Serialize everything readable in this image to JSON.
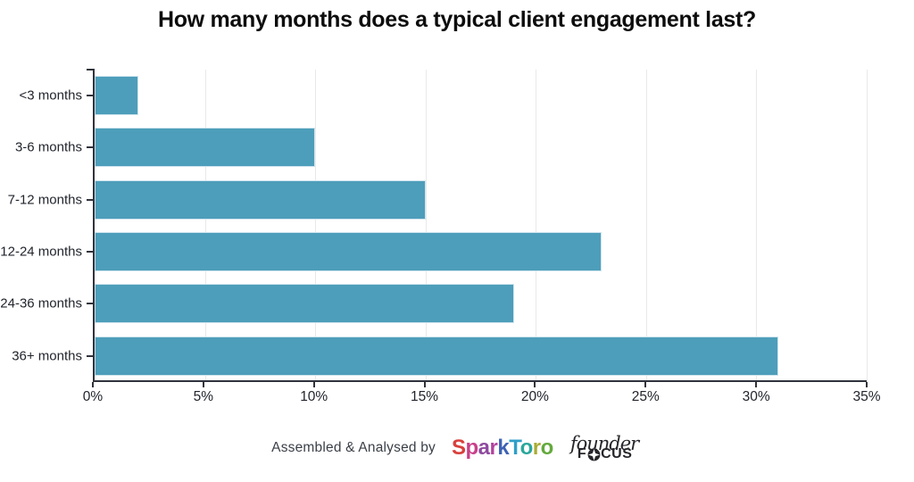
{
  "title": "How many months does a typical client engagement last?",
  "chart_data": {
    "type": "bar",
    "orientation": "horizontal",
    "title": "How many months does a typical client engagement last?",
    "categories": [
      "<3 months",
      "3-6 months",
      "7-12 months",
      "12-24 months",
      "24-36 months",
      "36+ months"
    ],
    "values": [
      2,
      10,
      15,
      23,
      19,
      31
    ],
    "value_unit": "%",
    "xlim": [
      0,
      35
    ],
    "x_tick_step": 5,
    "x_tick_labels": [
      "0%",
      "5%",
      "10%",
      "15%",
      "20%",
      "25%",
      "30%",
      "35%"
    ],
    "grid": true,
    "legend": false,
    "ylabel": "",
    "xlabel": "",
    "colors": {
      "bar": "#4D9EBA",
      "bar_border": "#CFE4EE",
      "grid": "#E9E9E9",
      "axis": "#30333C",
      "label": "#22252D"
    }
  },
  "footer": {
    "credit": "Assembled & Analysed by",
    "sparktoro_letters": [
      {
        "ch": "S",
        "color": "#D8403D"
      },
      {
        "ch": "p",
        "color": "#C93F8A"
      },
      {
        "ch": "a",
        "color": "#8F4A9F"
      },
      {
        "ch": "r",
        "color": "#B1419E"
      },
      {
        "ch": "k",
        "color": "#3E63B4"
      },
      {
        "ch": "T",
        "color": "#2F9FC8"
      },
      {
        "ch": "o",
        "color": "#2AA79B"
      },
      {
        "ch": "r",
        "color": "#A9AC34"
      },
      {
        "ch": "o",
        "color": "#63A93B"
      }
    ],
    "founderfocus": {
      "top": "founder",
      "bottom_prefix": "F",
      "bottom_suffix": "CUS",
      "color": "#26262B"
    }
  }
}
